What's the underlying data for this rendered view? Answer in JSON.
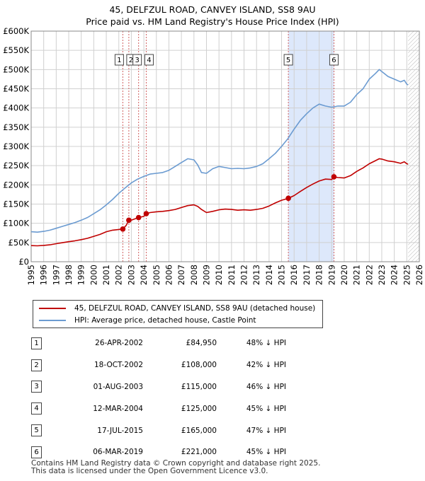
{
  "title_line1": "45, DELFZUL ROAD, CANVEY ISLAND, SS8 9AU",
  "title_line2": "Price paid vs. HM Land Registry's House Price Index (HPI)",
  "legend": {
    "property_label": "45, DELFZUL ROAD, CANVEY ISLAND, SS8 9AU (detached house)",
    "hpi_label": "HPI: Average price, detached house, Castle Point"
  },
  "colors": {
    "property": "#c00000",
    "hpi": "#6b9bd1",
    "shade": "#dde8fb",
    "grid": "#d0d0d0",
    "vline": "#d06060"
  },
  "chart_data": {
    "type": "line",
    "title": "45, DELFZUL ROAD, CANVEY ISLAND, SS8 9AU",
    "subtitle": "Price paid vs. HM Land Registry's House Price Index (HPI)",
    "xlabel": "",
    "ylabel": "",
    "xlim": [
      1995,
      2026
    ],
    "ylim": [
      0,
      600000
    ],
    "x_ticks": [
      "1995",
      "1996",
      "1997",
      "1998",
      "1999",
      "2000",
      "2001",
      "2002",
      "2003",
      "2004",
      "2005",
      "2006",
      "2007",
      "2008",
      "2009",
      "2010",
      "2011",
      "2012",
      "2013",
      "2014",
      "2015",
      "2016",
      "2017",
      "2018",
      "2019",
      "2020",
      "2021",
      "2022",
      "2023",
      "2024",
      "2025",
      "2026"
    ],
    "y_ticks": [
      {
        "value": 0,
        "label": "£0"
      },
      {
        "value": 50000,
        "label": "£50K"
      },
      {
        "value": 100000,
        "label": "£100K"
      },
      {
        "value": 150000,
        "label": "£150K"
      },
      {
        "value": 200000,
        "label": "£200K"
      },
      {
        "value": 250000,
        "label": "£250K"
      },
      {
        "value": 300000,
        "label": "£300K"
      },
      {
        "value": 350000,
        "label": "£350K"
      },
      {
        "value": 400000,
        "label": "£400K"
      },
      {
        "value": 450000,
        "label": "£450K"
      },
      {
        "value": 500000,
        "label": "£500K"
      },
      {
        "value": 550000,
        "label": "£550K"
      },
      {
        "value": 600000,
        "label": "£600K"
      }
    ],
    "grid": true,
    "shaded_range": [
      2015.54,
      2019.18
    ],
    "forecast_from": 2025.1,
    "series": [
      {
        "name": "HPI: Average price, detached house, Castle Point",
        "x": [
          1995,
          1995.5,
          1996,
          1996.5,
          1997,
          1997.5,
          1998,
          1998.5,
          1999,
          1999.5,
          2000,
          2000.5,
          2001,
          2001.5,
          2002,
          2002.5,
          2003,
          2003.5,
          2004,
          2004.5,
          2005,
          2005.5,
          2006,
          2006.5,
          2007,
          2007.5,
          2008,
          2008.3,
          2008.6,
          2009,
          2009.5,
          2010,
          2010.5,
          2011,
          2011.5,
          2012,
          2012.5,
          2013,
          2013.5,
          2014,
          2014.5,
          2015,
          2015.5,
          2016,
          2016.5,
          2017,
          2017.5,
          2018,
          2018.5,
          2019,
          2019.5,
          2020,
          2020.5,
          2021,
          2021.5,
          2022,
          2022.5,
          2022.8,
          2023,
          2023.5,
          2024,
          2024.5,
          2024.8,
          2025,
          2025.1
        ],
        "values": [
          78000,
          77000,
          79000,
          82000,
          87000,
          92000,
          97000,
          102000,
          108000,
          115000,
          125000,
          135000,
          148000,
          162000,
          178000,
          192000,
          205000,
          215000,
          222000,
          228000,
          230000,
          232000,
          238000,
          248000,
          258000,
          268000,
          265000,
          252000,
          232000,
          230000,
          242000,
          248000,
          245000,
          242000,
          243000,
          242000,
          244000,
          248000,
          255000,
          268000,
          282000,
          300000,
          320000,
          345000,
          368000,
          385000,
          400000,
          410000,
          405000,
          402000,
          405000,
          405000,
          415000,
          435000,
          450000,
          475000,
          490000,
          500000,
          495000,
          482000,
          475000,
          468000,
          472000,
          462000,
          460000
        ]
      },
      {
        "name": "45, DELFZUL ROAD, CANVEY ISLAND, SS8 9AU (detached house)",
        "x": [
          1995,
          1995.5,
          1996,
          1996.5,
          1997,
          1997.5,
          1998,
          1998.5,
          1999,
          1999.5,
          2000,
          2000.5,
          2001,
          2001.5,
          2002,
          2002.32,
          2002.6,
          2002.8,
          2003,
          2003.58,
          2004,
          2004.19,
          2004.5,
          2005,
          2005.5,
          2006,
          2006.5,
          2007,
          2007.5,
          2008,
          2008.3,
          2008.6,
          2009,
          2009.5,
          2010,
          2010.5,
          2011,
          2011.5,
          2012,
          2012.5,
          2013,
          2013.5,
          2014,
          2014.5,
          2015,
          2015.54,
          2016,
          2016.5,
          2017,
          2017.5,
          2018,
          2018.5,
          2019,
          2019.18,
          2019.5,
          2020,
          2020.5,
          2021,
          2021.5,
          2022,
          2022.5,
          2022.8,
          2023,
          2023.5,
          2024,
          2024.5,
          2024.8,
          2025,
          2025.1
        ],
        "values": [
          42000,
          41500,
          42500,
          44000,
          47000,
          49500,
          52000,
          54500,
          57500,
          61000,
          66000,
          71000,
          78000,
          82000,
          84000,
          84950,
          95000,
          108000,
          108000,
          115000,
          118000,
          125000,
          128000,
          130000,
          131000,
          133000,
          136000,
          141000,
          146000,
          148000,
          144000,
          136000,
          128000,
          131000,
          135000,
          137000,
          136000,
          134000,
          135000,
          134000,
          136000,
          139000,
          145000,
          153000,
          160000,
          165000,
          172000,
          183000,
          193000,
          202000,
          210000,
          215000,
          214000,
          221000,
          219000,
          218000,
          224000,
          235000,
          244000,
          255000,
          263000,
          268000,
          267000,
          262000,
          260000,
          256000,
          260000,
          255000,
          254000
        ]
      }
    ],
    "sales": [
      {
        "n": "1",
        "x": 2002.32,
        "value": 84950
      },
      {
        "n": "2",
        "x": 2002.8,
        "value": 108000
      },
      {
        "n": "3",
        "x": 2003.58,
        "value": 115000
      },
      {
        "n": "4",
        "x": 2004.19,
        "value": 125000
      },
      {
        "n": "5",
        "x": 2015.54,
        "value": 165000
      },
      {
        "n": "6",
        "x": 2019.18,
        "value": 221000
      }
    ]
  },
  "transactions": [
    {
      "n": "1",
      "date": "26-APR-2002",
      "price": "£84,950",
      "hpi": "48% ↓ HPI"
    },
    {
      "n": "2",
      "date": "18-OCT-2002",
      "price": "£108,000",
      "hpi": "42% ↓ HPI"
    },
    {
      "n": "3",
      "date": "01-AUG-2003",
      "price": "£115,000",
      "hpi": "46% ↓ HPI"
    },
    {
      "n": "4",
      "date": "12-MAR-2004",
      "price": "£125,000",
      "hpi": "45% ↓ HPI"
    },
    {
      "n": "5",
      "date": "17-JUL-2015",
      "price": "£165,000",
      "hpi": "47% ↓ HPI"
    },
    {
      "n": "6",
      "date": "06-MAR-2019",
      "price": "£221,000",
      "hpi": "45% ↓ HPI"
    }
  ],
  "footer": {
    "line1": "Contains HM Land Registry data © Crown copyright and database right 2025.",
    "line2": "This data is licensed under the Open Government Licence v3.0."
  }
}
